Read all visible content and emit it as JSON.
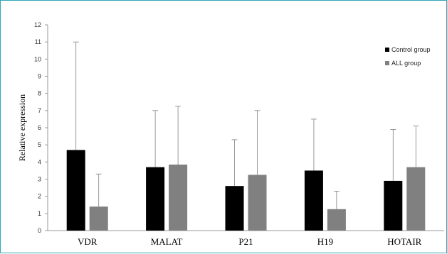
{
  "chart_data": {
    "type": "bar",
    "categories": [
      "VDR",
      "MALAT",
      "P21",
      "H19",
      "HOTAIR"
    ],
    "series": [
      {
        "name": "Control group",
        "values": [
          4.7,
          3.7,
          2.6,
          3.5,
          2.9
        ],
        "error_upper": [
          11.0,
          7.0,
          5.3,
          6.5,
          5.9
        ],
        "color": "#000000"
      },
      {
        "name": "ALL group",
        "values": [
          1.4,
          3.85,
          3.25,
          1.25,
          3.7
        ],
        "error_upper": [
          3.3,
          7.25,
          7.0,
          2.3,
          6.1
        ],
        "color": "#808080"
      }
    ],
    "title": "",
    "xlabel": "",
    "ylabel": "Relative expression",
    "ylim": [
      0,
      12
    ],
    "yticks": [
      "0",
      "1",
      "2",
      "3",
      "4",
      "5",
      "6",
      "7",
      "8",
      "9",
      "10",
      "11",
      "12"
    ],
    "legend_position": "top-right",
    "grid": false
  }
}
